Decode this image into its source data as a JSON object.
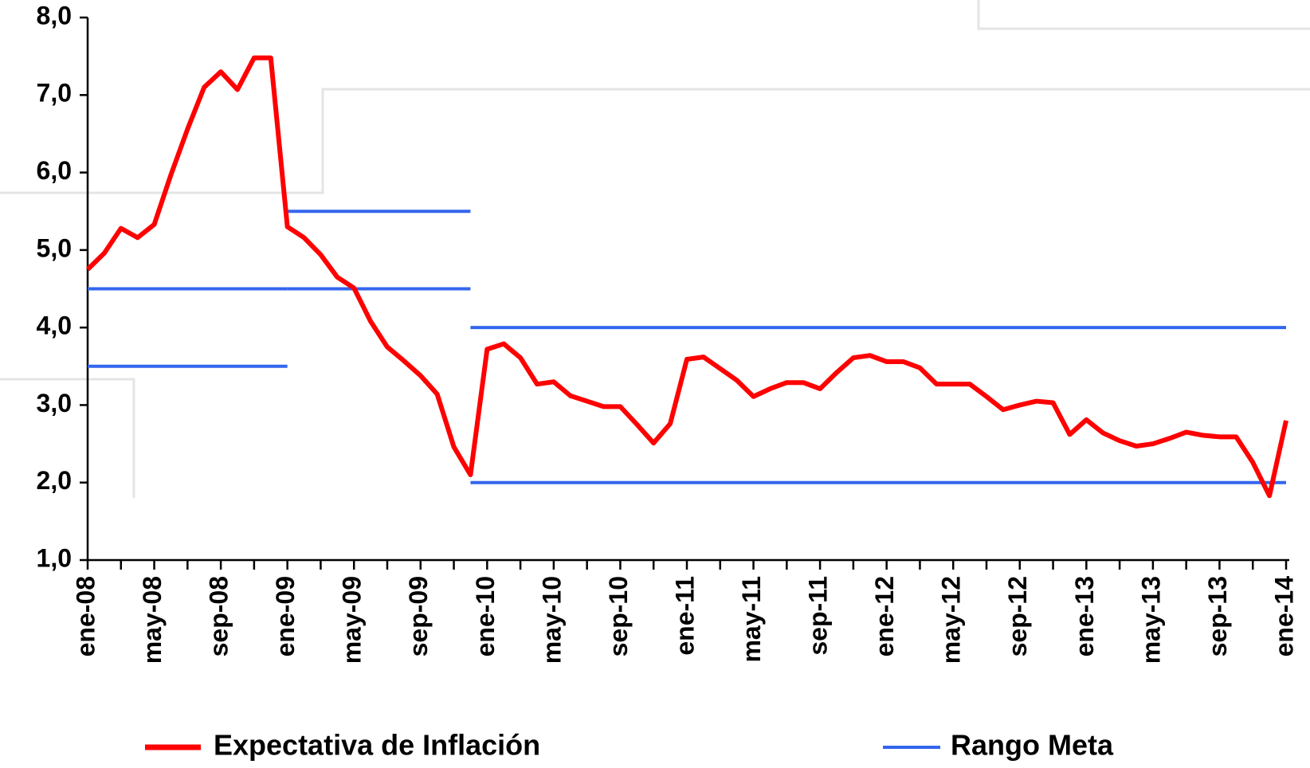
{
  "chart_data": {
    "type": "line",
    "categories": [
      "ene-08",
      null,
      null,
      null,
      "may-08",
      null,
      null,
      null,
      "sep-08",
      null,
      null,
      null,
      "ene-09",
      null,
      null,
      null,
      "may-09",
      null,
      null,
      null,
      "sep-09",
      null,
      null,
      null,
      "ene-10",
      null,
      null,
      null,
      "may-10",
      null,
      null,
      null,
      "sep-10",
      null,
      null,
      null,
      "ene-11",
      null,
      null,
      null,
      "may-11",
      null,
      null,
      null,
      "sep-11",
      null,
      null,
      null,
      "ene-12",
      null,
      null,
      null,
      "may-12",
      null,
      null,
      null,
      "sep-12",
      null,
      null,
      null,
      "ene-13",
      null,
      null,
      null,
      "may-13",
      null,
      null,
      null,
      "sep-13",
      null,
      null,
      null,
      "ene-14"
    ],
    "series": [
      {
        "name": "Expectativa de Inflación",
        "color": "#ff0000",
        "values": [
          4.75,
          4.96,
          5.28,
          5.16,
          5.33,
          5.97,
          6.56,
          7.1,
          7.3,
          7.07,
          7.48,
          7.48,
          5.3,
          5.16,
          4.94,
          4.65,
          4.51,
          4.08,
          3.75,
          3.57,
          3.38,
          3.14,
          2.46,
          2.1,
          3.72,
          3.79,
          3.61,
          3.27,
          3.3,
          3.12,
          3.05,
          2.98,
          2.98,
          2.75,
          2.51,
          2.76,
          3.59,
          3.62,
          3.47,
          3.32,
          3.11,
          3.21,
          3.29,
          3.29,
          3.21,
          3.42,
          3.61,
          3.64,
          3.56,
          3.56,
          3.48,
          3.27,
          3.27,
          3.27,
          3.11,
          2.94,
          3.0,
          3.05,
          3.03,
          2.62,
          2.81,
          2.64,
          2.54,
          2.47,
          2.5,
          2.57,
          2.65,
          2.61,
          2.59,
          2.59,
          2.26,
          1.83,
          2.8
        ]
      }
    ],
    "ranges": {
      "name": "Rango Meta",
      "color": "#3366ee",
      "segments": [
        {
          "x": [
            0,
            12
          ],
          "lower": 3.5,
          "upper": 4.5
        },
        {
          "x": [
            12,
            23
          ],
          "lower": 4.5,
          "upper": 5.5
        },
        {
          "x": [
            23,
            72
          ],
          "lower": 2.0,
          "upper": 4.0
        }
      ]
    },
    "ylim": [
      1,
      8
    ],
    "yticks": [
      {
        "value": 1,
        "label": "1,0"
      },
      {
        "value": 2,
        "label": "2,0"
      },
      {
        "value": 3,
        "label": "3,0"
      },
      {
        "value": 4,
        "label": "4,0"
      },
      {
        "value": 5,
        "label": "5,0"
      },
      {
        "value": 6,
        "label": "6,0"
      },
      {
        "value": 7,
        "label": "7,0"
      },
      {
        "value": 8,
        "label": "8,0"
      }
    ]
  }
}
